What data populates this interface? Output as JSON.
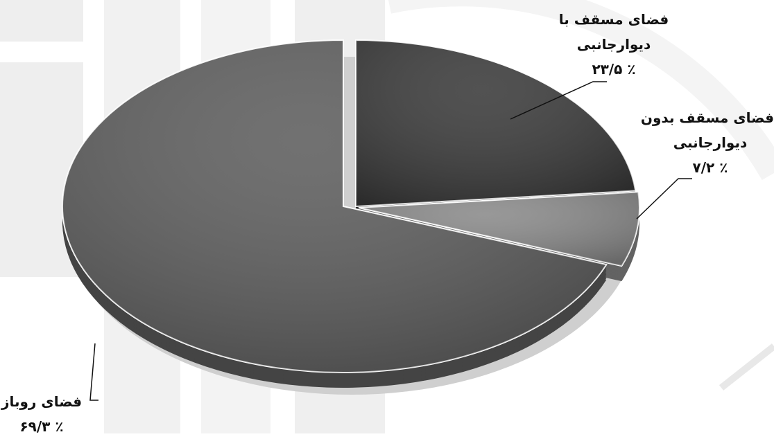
{
  "chart_data": {
    "type": "pie",
    "title": "",
    "unit": "%",
    "slices": [
      {
        "name": "فضای مسقف با دیوارجانبی",
        "value": 23.5,
        "label_lines": [
          "فضای مسقف با",
          "دیوارجانبی",
          "٪ ۲۳/۵"
        ],
        "color": "#3a3a3a"
      },
      {
        "name": "فضای مسقف بدون دیوارجانبی",
        "value": 7.2,
        "label_lines": [
          "فضای مسقف بدون",
          "دیوارجانبی",
          "٪ ۷/۲"
        ],
        "color": "#8a8a8a"
      },
      {
        "name": "فضای روباز",
        "value": 69.3,
        "label_lines": [
          "فضای روباز",
          "٪ ۶۹/۳"
        ],
        "color": "#5e5e5e"
      }
    ],
    "legend": "none",
    "style": "3d-exploded-pie",
    "start_angle_deg": 0,
    "direction": "clockwise"
  }
}
